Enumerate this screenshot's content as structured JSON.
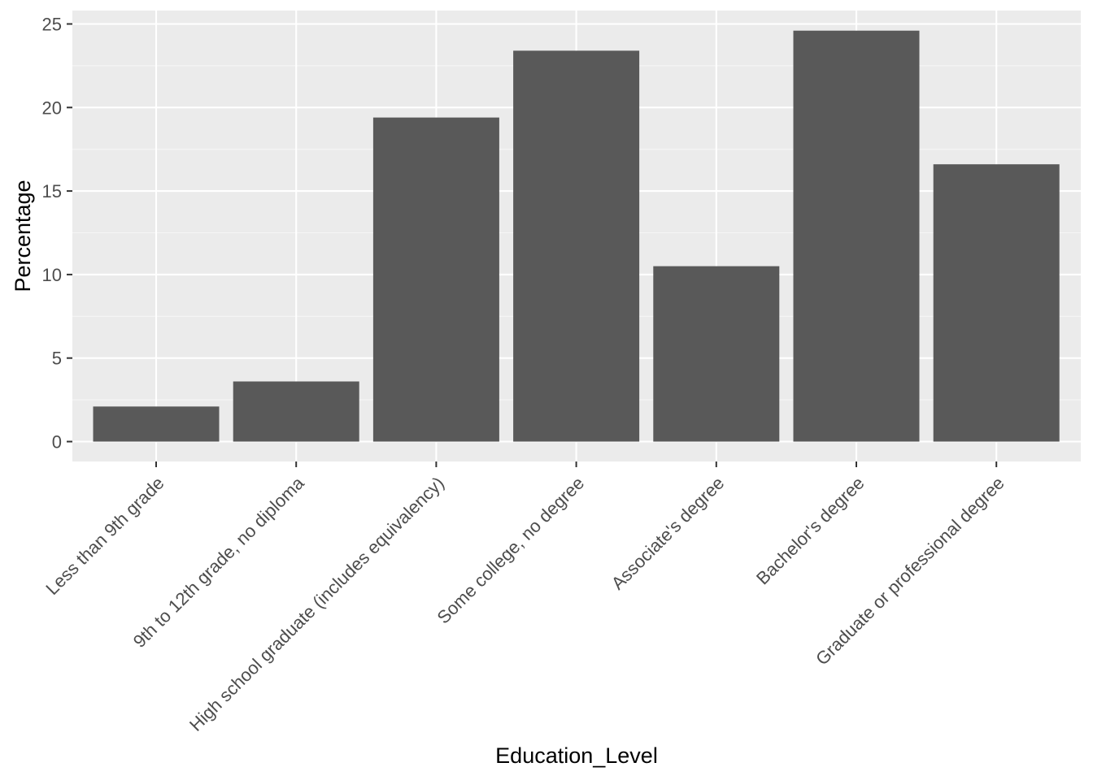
{
  "chart_data": {
    "type": "bar",
    "title": "",
    "xlabel": "Education_Level",
    "ylabel": "Percentage",
    "categories": [
      "Less than 9th grade",
      "9th to 12th grade, no diploma",
      "High school graduate (includes equivalency)",
      "Some college, no degree",
      "Associate's degree",
      "Bachelor's degree",
      "Graduate or professional degree"
    ],
    "values": [
      2.1,
      3.6,
      19.4,
      23.4,
      10.5,
      24.6,
      16.6
    ],
    "ylim": [
      -1.2,
      25.8
    ],
    "yticks": [
      0,
      5,
      10,
      15,
      20,
      25
    ],
    "grid": true,
    "legend": "none",
    "colors": {
      "panel_background": "#ebebeb",
      "grid_major": "#ffffff",
      "grid_minor": "#f5f5f5",
      "bar_fill": "#595959",
      "tick_label": "#4d4d4d",
      "tick_mark": "#333333",
      "axis_title": "#000000"
    }
  }
}
